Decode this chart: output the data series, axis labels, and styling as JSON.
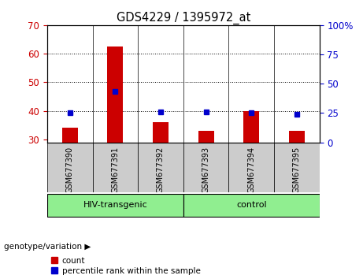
{
  "title": "GDS4229 / 1395972_at",
  "samples": [
    "GSM677390",
    "GSM677391",
    "GSM677392",
    "GSM677393",
    "GSM677394",
    "GSM677395"
  ],
  "count_values": [
    34.0,
    62.5,
    36.0,
    33.0,
    40.0,
    33.0
  ],
  "percentile_values": [
    25.0,
    43.5,
    26.0,
    26.0,
    25.0,
    24.0
  ],
  "ylim_left": [
    29,
    70
  ],
  "ylim_right": [
    0,
    100
  ],
  "yticks_left": [
    30,
    40,
    50,
    60,
    70
  ],
  "yticks_right": [
    0,
    25,
    50,
    75,
    100
  ],
  "ytick_labels_right": [
    "0",
    "25",
    "50",
    "75",
    "100%"
  ],
  "groups": [
    {
      "label": "HIV-transgenic",
      "indices": [
        0,
        1,
        2
      ],
      "color": "#90ee90"
    },
    {
      "label": "control",
      "indices": [
        3,
        4,
        5
      ],
      "color": "#90ee90"
    }
  ],
  "bar_color": "#cc0000",
  "dot_color": "#0000cc",
  "bar_width": 0.35,
  "background_plot": "#ffffff",
  "background_label": "#cccccc",
  "count_baseline": 29,
  "grid_yticks": [
    40,
    50,
    60
  ],
  "legend_count_label": "count",
  "legend_pct_label": "percentile rank within the sample",
  "figsize": [
    4.61,
    3.54
  ],
  "dpi": 100
}
